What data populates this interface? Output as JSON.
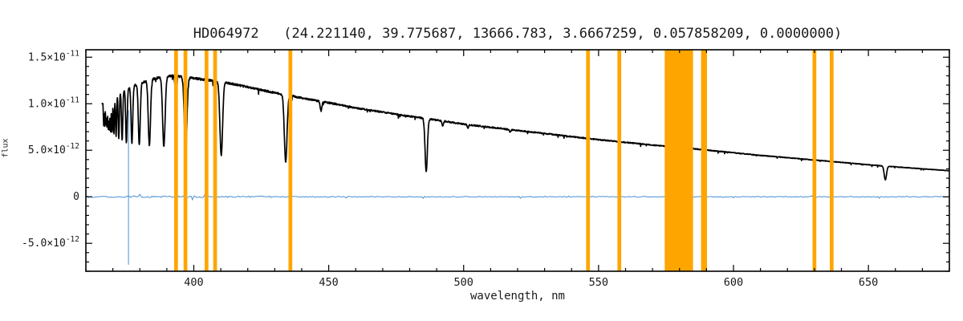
{
  "chart_data": {
    "type": "line",
    "title": "HD064972   (24.221140, 39.775687, 13666.783, 3.6667259, 0.057858209, 0.0000000)",
    "xlabel": "wavelength, nm",
    "ylabel": "flux",
    "xlim": [
      360,
      680
    ],
    "ylim": [
      -8e-12,
      1.58e-11
    ],
    "x_ticks": [
      400,
      450,
      500,
      550,
      600,
      650
    ],
    "x_minor_step": 10,
    "y_minor_step": 1e-12,
    "y_ticks": [
      {
        "value": 1.5e-11,
        "base": "1.5×10",
        "exp": "-11"
      },
      {
        "value": 1e-11,
        "base": "1.0×10",
        "exp": "-11"
      },
      {
        "value": 5e-12,
        "base": "5.0×10",
        "exp": "-12"
      },
      {
        "value": 0,
        "base": "0",
        "exp": ""
      },
      {
        "value": -5e-12,
        "base": "-5.0×10",
        "exp": "-12"
      }
    ],
    "colors": {
      "spectrum": "#000000",
      "zero_noise": "#4a90d2",
      "bands": "#ffa500",
      "frame": "#000000",
      "text": "#1a1a1a"
    },
    "series": [
      {
        "name": "stellar spectrum",
        "color_key": "spectrum",
        "continuum": [
          [
            366,
            1e-11
          ],
          [
            369,
            1.07e-11
          ],
          [
            372,
            1.12e-11
          ],
          [
            376,
            1.17e-11
          ],
          [
            380,
            1.22e-11
          ],
          [
            384,
            1.26e-11
          ],
          [
            388,
            1.285e-11
          ],
          [
            392,
            1.3e-11
          ],
          [
            396,
            1.29e-11
          ],
          [
            400,
            1.275e-11
          ],
          [
            406,
            1.25e-11
          ],
          [
            412,
            1.225e-11
          ],
          [
            420,
            1.18e-11
          ],
          [
            428,
            1.13e-11
          ],
          [
            436,
            1.085e-11
          ],
          [
            444,
            1.04e-11
          ],
          [
            452,
            1e-11
          ],
          [
            460,
            9.55e-12
          ],
          [
            470,
            9.1e-12
          ],
          [
            480,
            8.65e-12
          ],
          [
            490,
            8.25e-12
          ],
          [
            500,
            7.8e-12
          ],
          [
            512,
            7.4e-12
          ],
          [
            524,
            7e-12
          ],
          [
            536,
            6.6e-12
          ],
          [
            548,
            6.2e-12
          ],
          [
            560,
            5.85e-12
          ],
          [
            572,
            5.5e-12
          ],
          [
            584,
            5.2e-12
          ],
          [
            596,
            4.85e-12
          ],
          [
            608,
            4.5e-12
          ],
          [
            620,
            4.2e-12
          ],
          [
            632,
            3.9e-12
          ],
          [
            644,
            3.6e-12
          ],
          [
            656,
            3.3e-12
          ],
          [
            668,
            3.05e-12
          ],
          [
            680,
            2.8e-12
          ]
        ],
        "absorption_lines": [
          {
            "center": 366.6,
            "depth": 0.24,
            "sigma": 0.17
          },
          {
            "center": 367.0,
            "depth": 0.26,
            "sigma": 0.17
          },
          {
            "center": 367.45,
            "depth": 0.27,
            "sigma": 0.18
          },
          {
            "center": 367.85,
            "depth": 0.29,
            "sigma": 0.19
          },
          {
            "center": 368.29,
            "depth": 0.3,
            "sigma": 0.2
          },
          {
            "center": 368.7,
            "depth": 0.32,
            "sigma": 0.21
          },
          {
            "center": 369.17,
            "depth": 0.34,
            "sigma": 0.22
          },
          {
            "center": 369.72,
            "depth": 0.36,
            "sigma": 0.24
          },
          {
            "center": 370.39,
            "depth": 0.38,
            "sigma": 0.26
          },
          {
            "center": 371.2,
            "depth": 0.41,
            "sigma": 0.28
          },
          {
            "center": 372.19,
            "depth": 0.44,
            "sigma": 0.31
          },
          {
            "center": 373.44,
            "depth": 0.47,
            "sigma": 0.34
          },
          {
            "center": 375.02,
            "depth": 0.5,
            "sigma": 0.38
          },
          {
            "center": 377.06,
            "depth": 0.52,
            "sigma": 0.43
          },
          {
            "center": 379.79,
            "depth": 0.54,
            "sigma": 0.5
          },
          {
            "center": 383.54,
            "depth": 0.56,
            "sigma": 0.58
          },
          {
            "center": 388.9,
            "depth": 0.58,
            "sigma": 0.66
          },
          {
            "center": 393.37,
            "depth": 0.22,
            "sigma": 0.4
          },
          {
            "center": 396.97,
            "depth": 0.61,
            "sigma": 0.7
          },
          {
            "center": 410.17,
            "depth": 0.64,
            "sigma": 0.7
          },
          {
            "center": 434.05,
            "depth": 0.66,
            "sigma": 0.7
          },
          {
            "center": 447.15,
            "depth": 0.1,
            "sigma": 0.45
          },
          {
            "center": 486.13,
            "depth": 0.68,
            "sigma": 0.6
          },
          {
            "center": 492.19,
            "depth": 0.06,
            "sigma": 0.4
          },
          {
            "center": 501.57,
            "depth": 0.05,
            "sigma": 0.35
          },
          {
            "center": 517.27,
            "depth": 0.04,
            "sigma": 0.35
          },
          {
            "center": 656.28,
            "depth": 0.45,
            "sigma": 0.6
          }
        ]
      },
      {
        "name": "zero-level noise trace",
        "color_key": "zero_noise"
      }
    ],
    "masked_bands_nm": [
      [
        392.7,
        394.1
      ],
      [
        396.2,
        397.6
      ],
      [
        404.0,
        405.4
      ],
      [
        407.2,
        408.6
      ],
      [
        435.1,
        436.5
      ],
      [
        545.4,
        546.8
      ],
      [
        557.0,
        558.4
      ],
      [
        574.5,
        585.0
      ],
      [
        588.0,
        590.2
      ],
      [
        629.3,
        630.7
      ],
      [
        635.7,
        637.1
      ]
    ],
    "marker_line": {
      "x": 375.8,
      "y_from": -7.3e-12,
      "y_to": 9.3e-12
    }
  }
}
